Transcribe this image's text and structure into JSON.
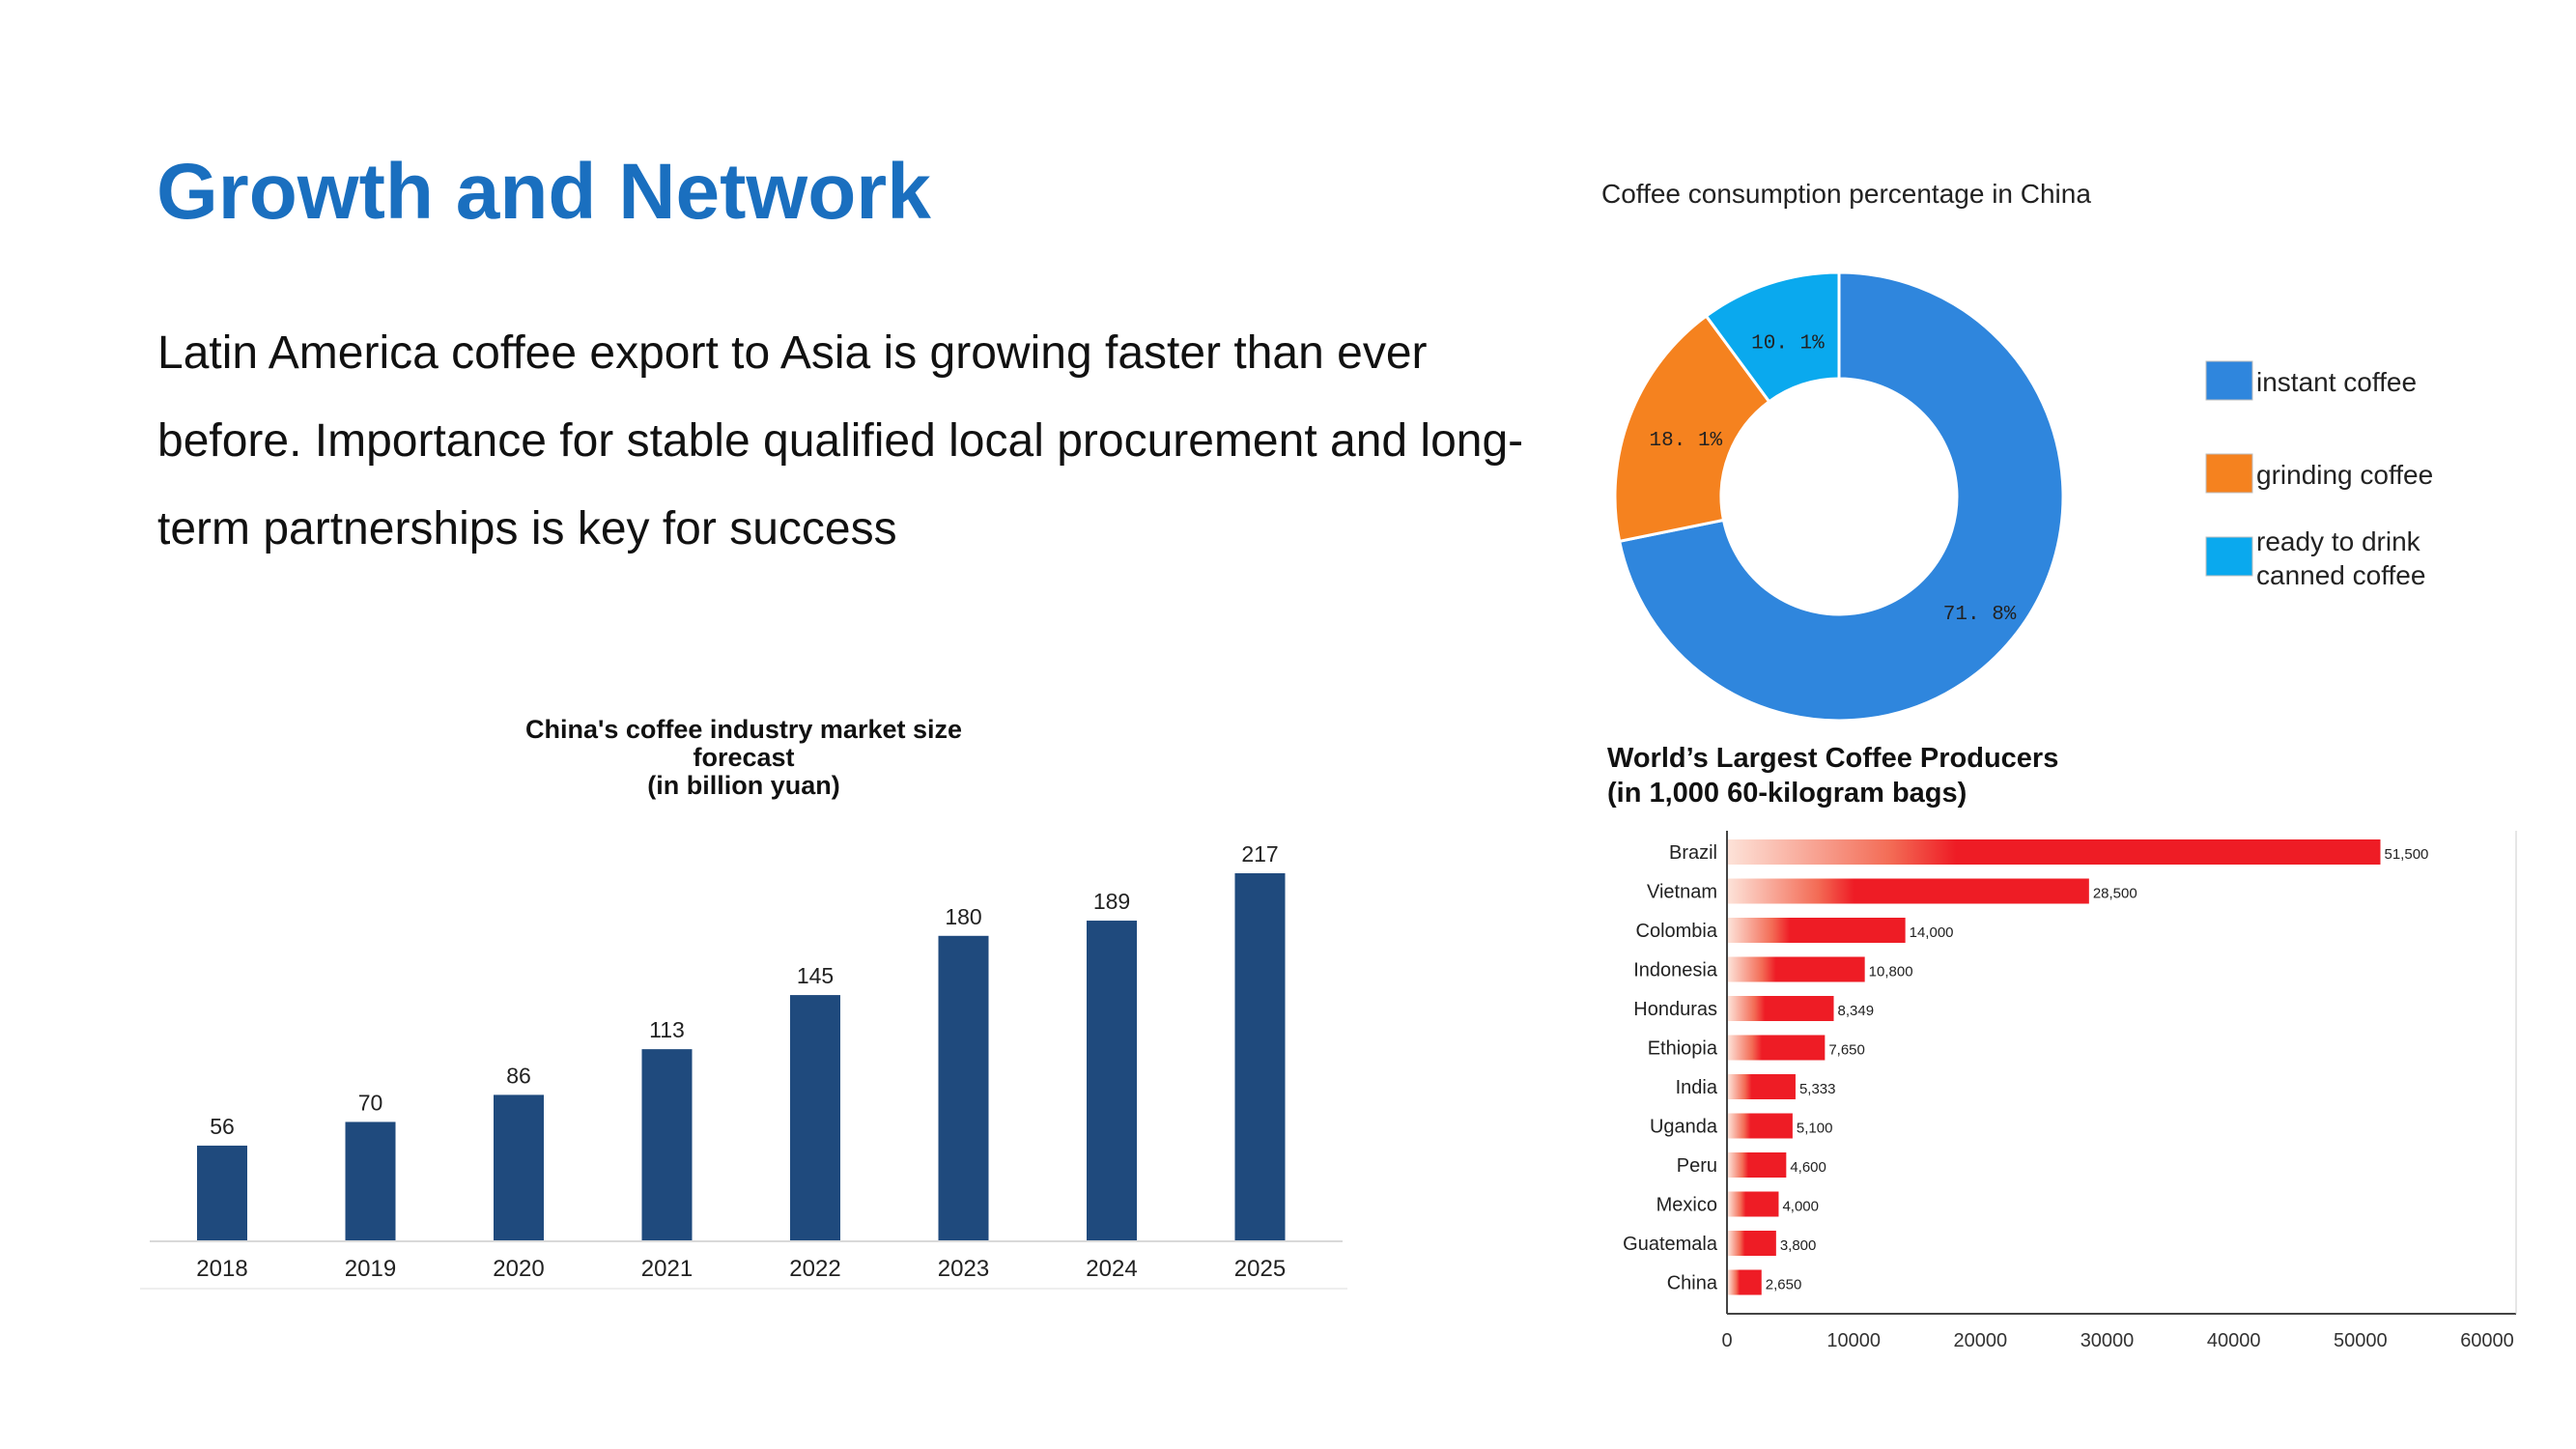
{
  "slide": {
    "title": "Growth and Network",
    "body": "Latin America coffee export to Asia is growing faster than ever before. Importance for stable qualified local procurement and long-term partnerships is key for success"
  },
  "chart_data": [
    {
      "type": "bar",
      "title": "China's coffee industry market size forecast (in billion yuan)",
      "title_lines": [
        "China's coffee industry market size",
        "forecast",
        "(in billion yuan)"
      ],
      "categories": [
        "2018",
        "2019",
        "2020",
        "2021",
        "2022",
        "2023",
        "2024",
        "2025"
      ],
      "values": [
        56,
        70,
        86,
        113,
        145,
        180,
        189,
        217
      ],
      "ylim": [
        0,
        217
      ],
      "grid": false,
      "color": "#1f4a7d"
    },
    {
      "type": "pie",
      "variant": "donut",
      "title": "Coffee consumption percentage in China",
      "labels": [
        "instant coffee",
        "grinding coffee",
        "ready to drink canned coffee"
      ],
      "legend_lines": [
        [
          "instant coffee"
        ],
        [
          "grinding coffee"
        ],
        [
          "ready to drink",
          "canned coffee"
        ]
      ],
      "values": [
        71.8,
        18.1,
        10.1
      ],
      "value_labels": [
        "71. 8%",
        "18. 1%",
        "10. 1%"
      ],
      "colors": [
        "#2f86dd",
        "#f5821f",
        "#0aa9ee"
      ],
      "legend_position": "right"
    },
    {
      "type": "bar",
      "orientation": "horizontal",
      "title": "World’s Largest Coffee Producers (in 1,000 60-kilogram bags)",
      "title_lines": [
        "World’s Largest Coffee Producers",
        "(in 1,000 60-kilogram bags)"
      ],
      "categories": [
        "Brazil",
        "Vietnam",
        "Colombia",
        "Indonesia",
        "Honduras",
        "Ethiopia",
        "India",
        "Uganda",
        "Peru",
        "Mexico",
        "Guatemala",
        "China"
      ],
      "values": [
        51500,
        28500,
        14000,
        10800,
        8349,
        7650,
        5333,
        5100,
        4600,
        4000,
        3800,
        2650
      ],
      "value_labels": [
        "51,500",
        "28,500",
        "14,000",
        "10,800",
        "8,349",
        "7,650",
        "5,333",
        "5,100",
        "4,600",
        "4,000",
        "3,800",
        "2,650"
      ],
      "xticks": [
        0,
        10000,
        20000,
        30000,
        40000,
        50000,
        60000
      ],
      "xlim": [
        0,
        60000
      ],
      "color": "#ee1c25"
    }
  ]
}
